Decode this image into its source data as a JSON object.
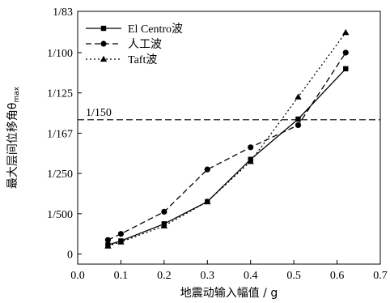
{
  "chart_data": {
    "type": "line",
    "title": "",
    "xlabel": "地震动输入幅值 / g",
    "ylabel_main": "最大层间位移角θ",
    "ylabel_sub": "max",
    "xlim": [
      0.0,
      0.7
    ],
    "x_ticks": [
      0.0,
      0.1,
      0.2,
      0.3,
      0.4,
      0.5,
      0.6,
      0.7
    ],
    "x_tick_labels": [
      "0.0",
      "0.1",
      "0.2",
      "0.3",
      "0.4",
      "0.5",
      "0.6",
      "0.7"
    ],
    "y_scale": "reciprocal",
    "y_ticks": [
      0,
      0.002,
      0.004,
      0.006,
      0.008,
      0.01,
      0.01205
    ],
    "y_tick_labels": [
      "0",
      "1/500",
      "1/250",
      "1/167",
      "1/125",
      "1/100",
      "1/83"
    ],
    "ylim": [
      -0.0005,
      0.01205
    ],
    "grid": false,
    "legend_position": "top-left",
    "reference_line": {
      "label": "1/150",
      "value": 0.006667,
      "style": "dashed"
    },
    "series": [
      {
        "name": "El Centro波",
        "marker": "square",
        "line_style": "solid",
        "points": [
          [
            0.07,
            0.00045
          ],
          [
            0.1,
            0.00065
          ],
          [
            0.2,
            0.0015
          ],
          [
            0.3,
            0.0026
          ],
          [
            0.4,
            0.0047
          ],
          [
            0.51,
            0.0067
          ],
          [
            0.62,
            0.0092
          ]
        ]
      },
      {
        "name": "人工波",
        "marker": "circle",
        "line_style": "dashed",
        "points": [
          [
            0.07,
            0.0007
          ],
          [
            0.1,
            0.001
          ],
          [
            0.2,
            0.0021
          ],
          [
            0.3,
            0.0042
          ],
          [
            0.4,
            0.0053
          ],
          [
            0.51,
            0.0064
          ],
          [
            0.62,
            0.01
          ]
        ]
      },
      {
        "name": "Taft波",
        "marker": "triangle",
        "line_style": "dotted",
        "points": [
          [
            0.07,
            0.0004
          ],
          [
            0.1,
            0.0006
          ],
          [
            0.2,
            0.0014
          ],
          [
            0.3,
            0.0026
          ],
          [
            0.4,
            0.0046
          ],
          [
            0.51,
            0.0078
          ],
          [
            0.62,
            0.011
          ]
        ]
      }
    ]
  }
}
